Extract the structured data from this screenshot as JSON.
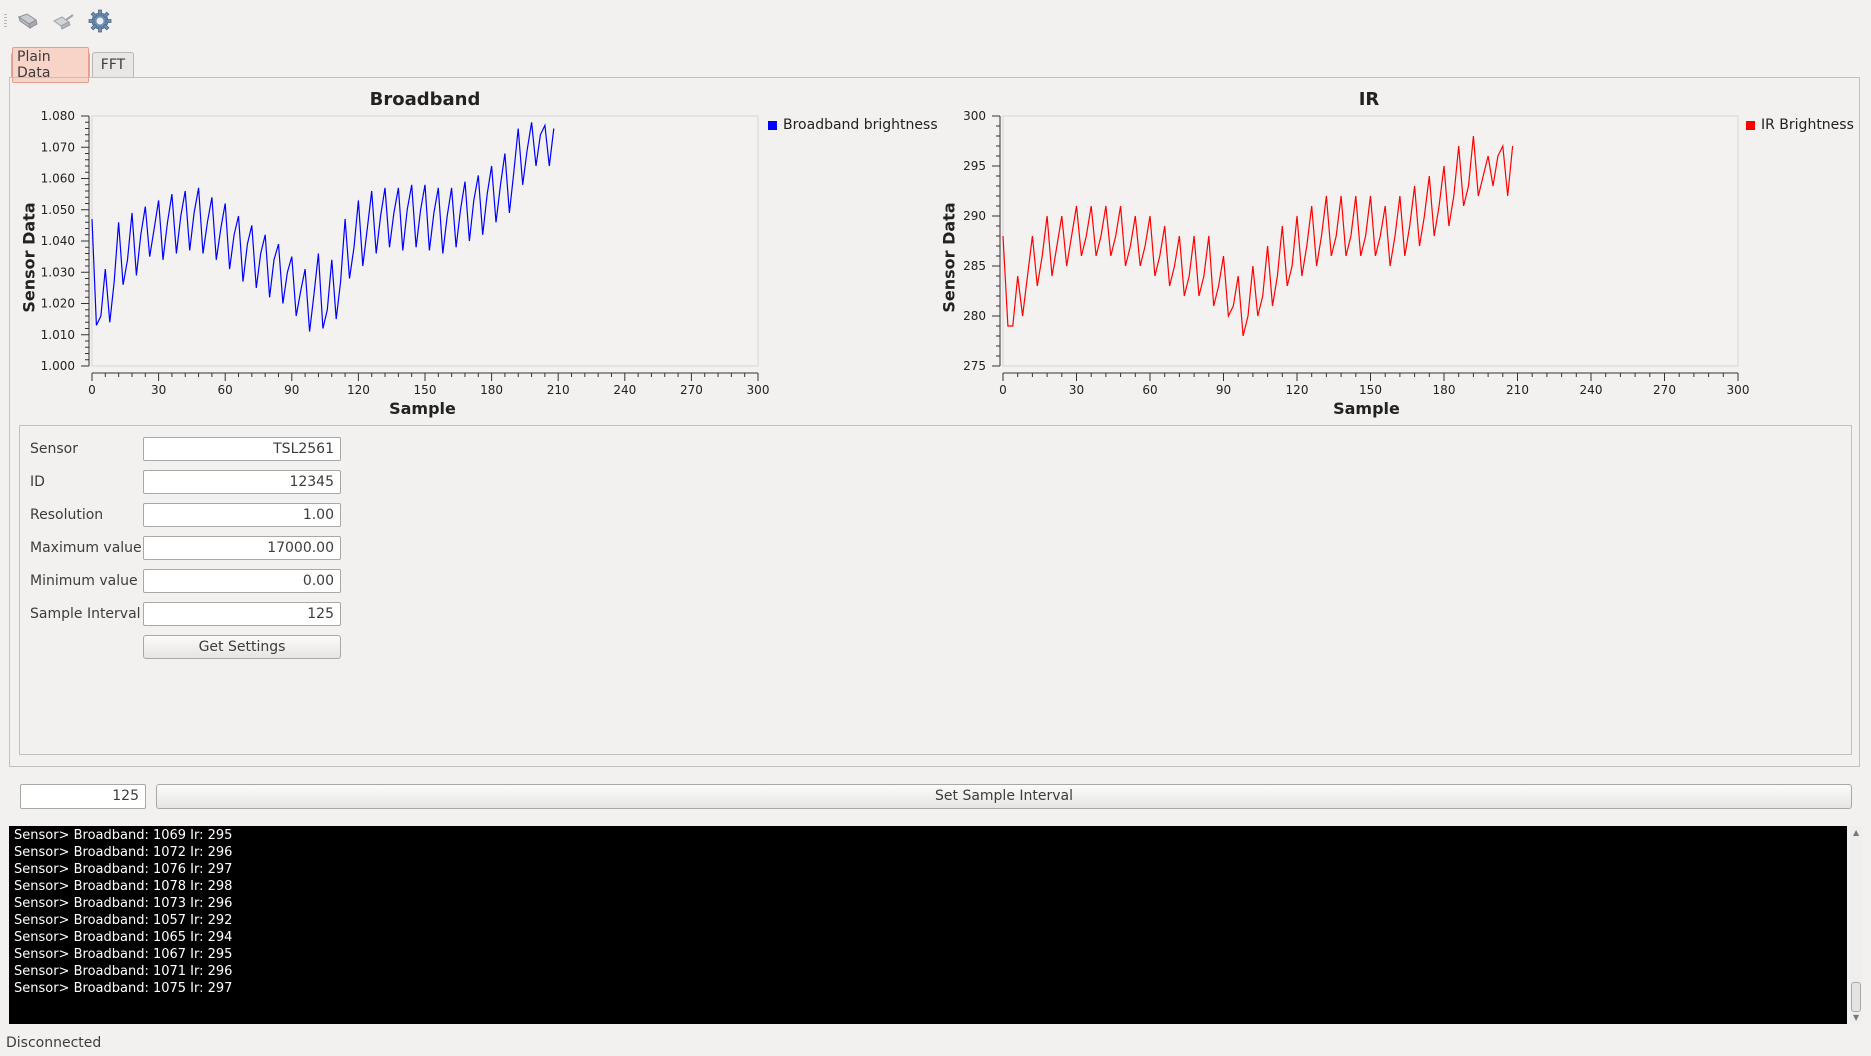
{
  "toolbar": {
    "icons": [
      "connect-icon",
      "disconnect-icon",
      "settings-gear-icon"
    ]
  },
  "tabs": [
    {
      "label": "Plain Data",
      "active": true
    },
    {
      "label": "FFT",
      "active": false
    }
  ],
  "charts": {
    "broadband": {
      "title": "Broadband",
      "xlabel": "Sample",
      "ylabel": "Sensor Data",
      "legend": "Broadband brightness",
      "color": "#0000ff"
    },
    "ir": {
      "title": "IR",
      "xlabel": "Sample",
      "ylabel": "Sensor Data",
      "legend": "IR Brightness",
      "color": "#ff0000"
    }
  },
  "chart_data": [
    {
      "type": "line",
      "title": "Broadband",
      "xlabel": "Sample",
      "ylabel": "Sensor Data",
      "xlim": [
        0,
        300
      ],
      "ylim": [
        1.0,
        1.08
      ],
      "xticks": [
        0,
        30,
        60,
        90,
        120,
        150,
        180,
        210,
        240,
        270,
        300
      ],
      "yticks": [
        "1.000",
        "1.010",
        "1.020",
        "1.030",
        "1.040",
        "1.050",
        "1.060",
        "1.070",
        "1.080"
      ],
      "series": [
        {
          "name": "Broadband brightness",
          "color": "#0000ff",
          "x_start": 0,
          "x_step": 2,
          "values": [
            1.047,
            1.013,
            1.016,
            1.031,
            1.014,
            1.027,
            1.046,
            1.026,
            1.034,
            1.049,
            1.029,
            1.042,
            1.051,
            1.035,
            1.044,
            1.053,
            1.034,
            1.046,
            1.055,
            1.036,
            1.048,
            1.056,
            1.037,
            1.049,
            1.057,
            1.036,
            1.046,
            1.054,
            1.034,
            1.044,
            1.052,
            1.031,
            1.042,
            1.048,
            1.027,
            1.039,
            1.045,
            1.025,
            1.036,
            1.042,
            1.022,
            1.034,
            1.039,
            1.02,
            1.03,
            1.035,
            1.016,
            1.024,
            1.031,
            1.011,
            1.023,
            1.036,
            1.012,
            1.018,
            1.034,
            1.015,
            1.027,
            1.047,
            1.028,
            1.038,
            1.053,
            1.032,
            1.044,
            1.056,
            1.036,
            1.048,
            1.057,
            1.038,
            1.049,
            1.057,
            1.037,
            1.05,
            1.058,
            1.038,
            1.05,
            1.058,
            1.037,
            1.049,
            1.057,
            1.036,
            1.048,
            1.057,
            1.038,
            1.05,
            1.059,
            1.04,
            1.053,
            1.061,
            1.042,
            1.055,
            1.064,
            1.046,
            1.058,
            1.068,
            1.049,
            1.062,
            1.076,
            1.058,
            1.069,
            1.078,
            1.064,
            1.074,
            1.077,
            1.064,
            1.076
          ]
        }
      ]
    },
    {
      "type": "line",
      "title": "IR",
      "xlabel": "Sample",
      "ylabel": "Sensor Data",
      "xlim": [
        0,
        300
      ],
      "ylim": [
        275,
        300
      ],
      "xticks": [
        0,
        30,
        60,
        90,
        120,
        150,
        180,
        210,
        240,
        270,
        300
      ],
      "yticks": [
        "275",
        "280",
        "285",
        "290",
        "295",
        "300"
      ],
      "series": [
        {
          "name": "IR Brightness",
          "color": "#ff0000",
          "x_start": 0,
          "x_step": 2,
          "values": [
            288,
            279,
            279,
            284,
            280,
            284,
            288,
            283,
            286,
            290,
            284,
            287,
            290,
            285,
            288,
            291,
            286,
            288,
            291,
            286,
            288,
            291,
            286,
            288,
            291,
            285,
            287,
            290,
            285,
            287,
            290,
            284,
            286,
            289,
            283,
            285,
            288,
            282,
            284,
            288,
            282,
            284,
            288,
            281,
            283,
            286,
            280,
            281,
            284,
            278,
            280,
            285,
            280,
            282,
            287,
            281,
            284,
            289,
            283,
            285,
            290,
            284,
            287,
            291,
            285,
            288,
            292,
            286,
            288,
            292,
            286,
            288,
            292,
            286,
            288,
            292,
            286,
            288,
            291,
            285,
            288,
            292,
            286,
            289,
            293,
            287,
            290,
            294,
            288,
            291,
            295,
            289,
            292,
            297,
            291,
            293,
            298,
            292,
            294,
            296,
            293,
            296,
            297,
            292,
            297
          ]
        }
      ]
    }
  ],
  "form": {
    "fields": [
      {
        "label": "Sensor",
        "value": "TSL2561"
      },
      {
        "label": "ID",
        "value": "12345"
      },
      {
        "label": "Resolution",
        "value": "1.00"
      },
      {
        "label": "Maximum value",
        "value": "17000.00"
      },
      {
        "label": "Minimum value",
        "value": "0.00"
      },
      {
        "label": "Sample Interval",
        "value": "125"
      }
    ],
    "get_settings_label": "Get Settings"
  },
  "interval": {
    "value": "125",
    "button_label": "Set Sample Interval"
  },
  "console": {
    "lines": [
      "Sensor> Broadband: 1069 Ir: 295",
      "Sensor> Broadband: 1072 Ir: 296",
      "Sensor> Broadband: 1076 Ir: 297",
      "Sensor> Broadband: 1078 Ir: 298",
      "Sensor> Broadband: 1073 Ir: 296",
      "Sensor> Broadband: 1057 Ir: 292",
      "Sensor> Broadband: 1065 Ir: 294",
      "Sensor> Broadband: 1067 Ir: 295",
      "Sensor> Broadband: 1071 Ir: 296",
      "Sensor> Broadband: 1075 Ir: 297"
    ]
  },
  "status": "Disconnected"
}
